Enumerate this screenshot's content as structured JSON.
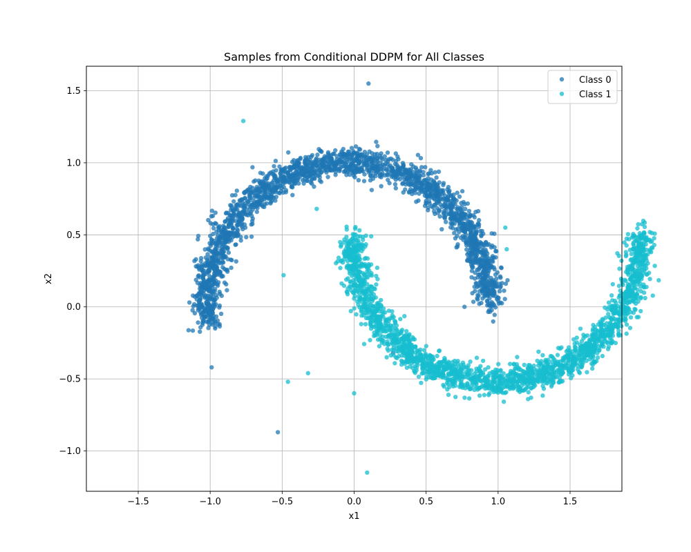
{
  "chart_data": {
    "type": "scatter",
    "title": "Samples from Conditional DDPM for All Classes",
    "xlabel": "x1",
    "ylabel": "x2",
    "xlim": [
      -1.86,
      1.86
    ],
    "ylim": [
      -1.28,
      1.67
    ],
    "xticks": [
      -1.5,
      -1.0,
      -0.5,
      0.0,
      0.5,
      1.0,
      1.5
    ],
    "xtick_labels": [
      "−1.5",
      "−1.0",
      "−0.5",
      "0.0",
      "0.5",
      "1.0",
      "1.5"
    ],
    "yticks": [
      -1.0,
      -0.5,
      0.0,
      0.5,
      1.0,
      1.5
    ],
    "ytick_labels": [
      "−1.0",
      "−0.5",
      "0.0",
      "0.5",
      "1.0",
      "1.5"
    ],
    "grid": true,
    "legend_position": "top-right",
    "series": [
      {
        "name": "Class 0",
        "color": "#1f77b4",
        "shape": "half-moon-upper",
        "arc_center": [
          -0.04,
          0.02
        ],
        "arc_radius": 0.98,
        "arc_degrees": [
          0,
          188
        ],
        "band_spread": 0.05,
        "sample_count": 2200,
        "outliers": [
          [
            0.1,
            1.55
          ],
          [
            -0.53,
            -0.87
          ],
          [
            -1.05,
            0.22
          ],
          [
            0.27,
            -0.32
          ],
          [
            -0.99,
            -0.42
          ]
        ]
      },
      {
        "name": "Class 1",
        "color": "#17becf",
        "shape": "half-moon-lower",
        "arc_center": [
          0.99,
          0.48
        ],
        "arc_radius": 1.0,
        "arc_degrees": [
          180,
          362
        ],
        "band_spread": 0.05,
        "sample_count": 2200,
        "outliers": [
          [
            -0.77,
            1.29
          ],
          [
            -0.26,
            0.68
          ],
          [
            -0.49,
            0.22
          ],
          [
            -0.46,
            -0.52
          ],
          [
            -0.32,
            -0.46
          ],
          [
            1.05,
            0.55
          ],
          [
            1.06,
            0.4
          ],
          [
            0.09,
            -1.15
          ],
          [
            0.0,
            -0.6
          ]
        ]
      }
    ]
  }
}
